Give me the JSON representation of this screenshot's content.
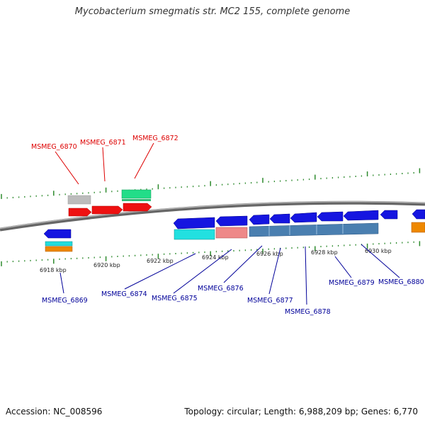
{
  "header": {
    "title": "Mycobacterium smegmatis str. MC2 155, complete genome"
  },
  "footer": {
    "accession": "Accession: NC_008596",
    "summary": "Topology: circular; Length: 6,988,209 bp; Genes: 6,770"
  },
  "map": {
    "backbone_color": "#8a8a8a",
    "tick_color": "#2e8b2e",
    "forward_label_color": "#dd0000",
    "reverse_label_color": "#000099",
    "scale_labels": [
      "6918 kbp",
      "6920 kbp",
      "6922 kbp",
      "6924 kbp",
      "6926 kbp",
      "6928 kbp",
      "6930 kbp"
    ],
    "forward_gene_labels": [
      "MSMEG_6870",
      "MSMEG_6871",
      "MSMEG_6872"
    ],
    "reverse_gene_labels": [
      "MSMEG_6869",
      "MSMEG_6874",
      "MSMEG_6875",
      "MSMEG_6876",
      "MSMEG_6877",
      "MSMEG_6878",
      "MSMEG_6879",
      "MSMEG_6880"
    ],
    "feature_colors": {
      "cds_forward": "#ee1111",
      "cds_reverse": "#1515e0",
      "gray": "#bbbbbb",
      "green": "#22dd88",
      "cyan": "#22dddd",
      "orange": "#ee8800",
      "pink": "#ee8888",
      "steelblue": "#4a7fb0"
    }
  }
}
